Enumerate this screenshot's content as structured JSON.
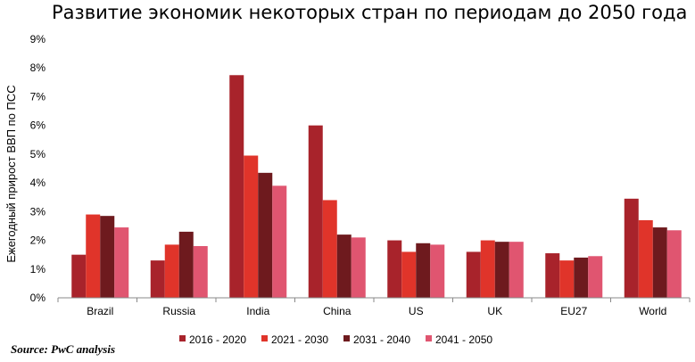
{
  "chart_data": {
    "type": "bar",
    "title": "Развитие экономик некоторых стран по периодам до 2050 года",
    "ylabel": "Ежегодный прирост ВВП по ПСС",
    "xlabel": "",
    "categories": [
      "Brazil",
      "Russia",
      "India",
      "China",
      "US",
      "UK",
      "EU27",
      "World"
    ],
    "ylim": [
      0,
      9
    ],
    "yticks": [
      "0%",
      "1%",
      "2%",
      "3%",
      "4%",
      "5%",
      "6%",
      "7%",
      "8%",
      "9%"
    ],
    "grid": false,
    "legend_position": "bottom",
    "series": [
      {
        "name": "2016 - 2020",
        "color": "#a8232b",
        "values": [
          1.5,
          1.3,
          7.75,
          6.0,
          2.0,
          1.6,
          1.55,
          3.45
        ]
      },
      {
        "name": "2021 - 2030",
        "color": "#e0342a",
        "values": [
          2.9,
          1.85,
          4.95,
          3.4,
          1.6,
          2.0,
          1.3,
          2.7
        ]
      },
      {
        "name": "2031 - 2040",
        "color": "#6e1a1e",
        "values": [
          2.85,
          2.3,
          4.35,
          2.2,
          1.9,
          1.95,
          1.4,
          2.45
        ]
      },
      {
        "name": "2041 - 2050",
        "color": "#e05570",
        "values": [
          2.45,
          1.8,
          3.9,
          2.1,
          1.85,
          1.95,
          1.45,
          2.35
        ]
      }
    ]
  },
  "source": "Source: PwC analysis"
}
